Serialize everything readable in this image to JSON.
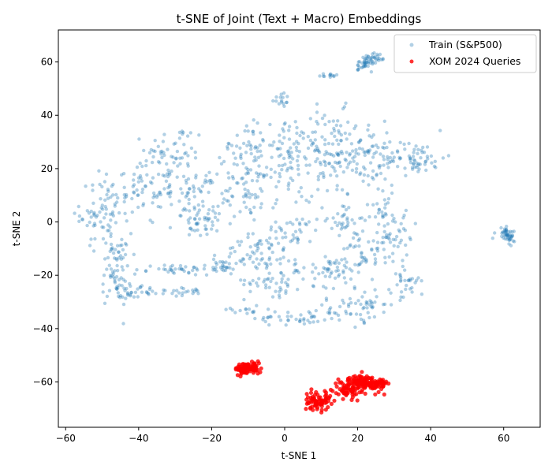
{
  "chart_data": {
    "type": "scatter",
    "title": "t-SNE of Joint (Text + Macro) Embeddings",
    "xlabel": "t-SNE 1",
    "ylabel": "t-SNE 2",
    "xlim": [
      -62,
      70
    ],
    "ylim": [
      -77,
      72
    ],
    "xticks": [
      -60,
      -40,
      -20,
      0,
      20,
      40,
      60
    ],
    "yticks": [
      -60,
      -40,
      -20,
      0,
      20,
      40,
      60
    ],
    "grid": false,
    "legend": "top-right",
    "series": [
      {
        "name": "Train (S&P500)",
        "color": "#1f77b4",
        "opacity": 0.35,
        "clusters": [
          {
            "cx": 23,
            "cy": 60,
            "sx": 1.2,
            "sy": 2.5,
            "n": 60,
            "angle": -50
          },
          {
            "cx": 12,
            "cy": 55,
            "sx": 1.8,
            "sy": 0.4,
            "n": 12,
            "angle": 0
          },
          {
            "cx": -1,
            "cy": 46,
            "sx": 1.2,
            "sy": 1.5,
            "n": 15,
            "angle": 0
          },
          {
            "cx": 61,
            "cy": -5,
            "sx": 1.0,
            "sy": 2.2,
            "n": 50,
            "angle": 30
          },
          {
            "cx": -30,
            "cy": 25,
            "sx": 4,
            "sy": 6,
            "n": 60,
            "angle": 0
          },
          {
            "cx": -40,
            "cy": 12,
            "sx": 5,
            "sy": 6,
            "n": 80,
            "angle": 0
          },
          {
            "cx": -50,
            "cy": 3,
            "sx": 3,
            "sy": 6,
            "n": 60,
            "angle": 0
          },
          {
            "cx": -46,
            "cy": -18,
            "sx": 2,
            "sy": 7,
            "n": 70,
            "angle": 0
          },
          {
            "cx": -25,
            "cy": 12,
            "sx": 3,
            "sy": 3,
            "n": 40,
            "angle": 0
          },
          {
            "cx": -22,
            "cy": 0,
            "sx": 4,
            "sy": 3,
            "n": 50,
            "angle": 0
          },
          {
            "cx": -10,
            "cy": 12,
            "sx": 4,
            "sy": 6,
            "n": 70,
            "angle": 0
          },
          {
            "cx": -11,
            "cy": 28,
            "sx": 3,
            "sy": 4,
            "n": 40,
            "angle": 0
          },
          {
            "cx": 2,
            "cy": 25,
            "sx": 5,
            "sy": 8,
            "n": 110,
            "angle": 0
          },
          {
            "cx": 13,
            "cy": 25,
            "sx": 4,
            "sy": 8,
            "n": 80,
            "angle": 0
          },
          {
            "cx": 23,
            "cy": 25,
            "sx": 5,
            "sy": 7,
            "n": 90,
            "angle": 0
          },
          {
            "cx": 36,
            "cy": 24,
            "sx": 4,
            "sy": 3,
            "n": 60,
            "angle": 0
          },
          {
            "cx": -30,
            "cy": -18,
            "sx": 6,
            "sy": 1,
            "n": 40,
            "angle": 0
          },
          {
            "cx": -32,
            "cy": -26,
            "sx": 6,
            "sy": 1,
            "n": 35,
            "angle": 0
          },
          {
            "cx": -18,
            "cy": -17,
            "sx": 3,
            "sy": 1.5,
            "n": 25,
            "angle": 0
          },
          {
            "cx": -7,
            "cy": -12,
            "sx": 5,
            "sy": 3,
            "n": 55,
            "angle": 0
          },
          {
            "cx": 2,
            "cy": -4,
            "sx": 4,
            "sy": 3,
            "n": 40,
            "angle": 0
          },
          {
            "cx": -3,
            "cy": -22,
            "sx": 4,
            "sy": 3,
            "n": 45,
            "angle": 0
          },
          {
            "cx": 12,
            "cy": -18,
            "sx": 5,
            "sy": 3,
            "n": 55,
            "angle": 0
          },
          {
            "cx": 22,
            "cy": -10,
            "sx": 3,
            "sy": 5,
            "n": 45,
            "angle": 0
          },
          {
            "cx": 30,
            "cy": -6,
            "sx": 3,
            "sy": 4,
            "n": 40,
            "angle": 0
          },
          {
            "cx": 33,
            "cy": -22,
            "sx": 2,
            "sy": 4,
            "n": 30,
            "angle": 0
          },
          {
            "cx": 20,
            "cy": -32,
            "sx": 6,
            "sy": 3,
            "n": 60,
            "angle": 15
          },
          {
            "cx": 4,
            "cy": -36,
            "sx": 6,
            "sy": 1.5,
            "n": 40,
            "angle": 0
          },
          {
            "cx": -12,
            "cy": -33,
            "sx": 3,
            "sy": 1,
            "n": 15,
            "angle": 0
          },
          {
            "cx": 16,
            "cy": 0,
            "sx": 2,
            "sy": 4,
            "n": 30,
            "angle": 0
          },
          {
            "cx": 28,
            "cy": 5,
            "sx": 3,
            "sy": 3,
            "n": 25,
            "angle": 0
          },
          {
            "cx": -43,
            "cy": -27,
            "sx": 2,
            "sy": 2,
            "n": 15,
            "angle": 0
          }
        ]
      },
      {
        "name": "XOM 2024 Queries",
        "color": "#ff0000",
        "opacity": 0.8,
        "clusters": [
          {
            "cx": -10,
            "cy": -55,
            "sx": 1.8,
            "sy": 1.1,
            "n": 90,
            "angle": 0
          },
          {
            "cx": 9,
            "cy": -67,
            "sx": 1.8,
            "sy": 1.8,
            "n": 70,
            "angle": 0
          },
          {
            "cx": 17,
            "cy": -63,
            "sx": 2.0,
            "sy": 1.6,
            "n": 60,
            "angle": 0
          },
          {
            "cx": 21,
            "cy": -60,
            "sx": 1.8,
            "sy": 1.3,
            "n": 90,
            "angle": 0
          },
          {
            "cx": 26,
            "cy": -61,
            "sx": 1.0,
            "sy": 1.4,
            "n": 50,
            "angle": 0
          }
        ]
      }
    ]
  }
}
